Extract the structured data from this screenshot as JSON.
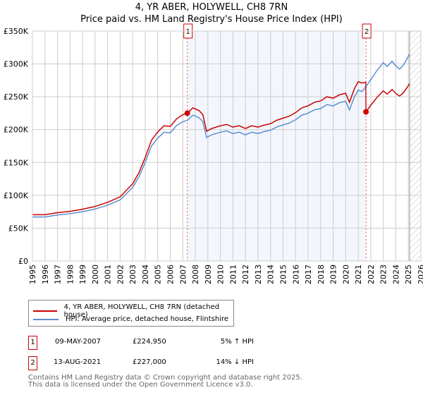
{
  "title_line1": "4, YR ABER, HOLYWELL, CH8 7RN",
  "title_line2": "Price paid vs. HM Land Registry's House Price Index (HPI)",
  "chart_data": {
    "type": "line",
    "title": "4, YR ABER, HOLYWELL, CH8 7RN — Price paid vs. HM Land Registry's House Price Index (HPI)",
    "xlim": [
      1995,
      2026
    ],
    "ylim": [
      0,
      350000
    ],
    "x_ticks": [
      "1995",
      "1996",
      "1997",
      "1998",
      "1999",
      "2000",
      "2001",
      "2002",
      "2003",
      "2004",
      "2005",
      "2006",
      "2007",
      "2008",
      "2009",
      "2010",
      "2011",
      "2012",
      "2013",
      "2014",
      "2015",
      "2016",
      "2017",
      "2018",
      "2019",
      "2020",
      "2021",
      "2022",
      "2023",
      "2024",
      "2025",
      "2026"
    ],
    "y_ticks": [
      {
        "v": 0,
        "label": "£0"
      },
      {
        "v": 50000,
        "label": "£50K"
      },
      {
        "v": 100000,
        "label": "£100K"
      },
      {
        "v": 150000,
        "label": "£150K"
      },
      {
        "v": 200000,
        "label": "£200K"
      },
      {
        "v": 250000,
        "label": "£250K"
      },
      {
        "v": 300000,
        "label": "£300K"
      },
      {
        "v": 350000,
        "label": "£350K"
      }
    ],
    "grid": true,
    "shaded_range": [
      2007.36,
      2021.62
    ],
    "forecast_hatch_from": 2025.1,
    "series": [
      {
        "name": "4, YR ABER, HOLYWELL, CH8 7RN (detached house)",
        "color": "#cc0000",
        "x": [
          1995,
          1996,
          1997,
          1998,
          1999,
          2000,
          2001,
          2002,
          2003,
          2003.5,
          2004,
          2004.5,
          2005,
          2005.5,
          2006,
          2006.5,
          2007,
          2007.36,
          2007.8,
          2008.3,
          2008.6,
          2008.9,
          2009.3,
          2010,
          2010.5,
          2011,
          2011.5,
          2012,
          2012.5,
          2013,
          2013.5,
          2014,
          2014.5,
          2015,
          2015.5,
          2016,
          2016.5,
          2017,
          2017.5,
          2018,
          2018.5,
          2019,
          2019.5,
          2020,
          2020.3,
          2020.7,
          2021,
          2021.3,
          2021.6,
          2021.62,
          2022,
          2022.5,
          2023,
          2023.3,
          2023.7,
          2024,
          2024.3,
          2024.6,
          2024.9,
          2025.1
        ],
        "y": [
          70400,
          70400,
          73500,
          75600,
          78800,
          83000,
          89300,
          97700,
          117600,
          134400,
          157500,
          183800,
          196400,
          205800,
          204800,
          216300,
          222600,
          224950,
          233100,
          228900,
          222600,
          197400,
          201600,
          205800,
          207900,
          203700,
          205800,
          201600,
          205800,
          203700,
          206900,
          209000,
          214200,
          217400,
          220500,
          225800,
          233100,
          236300,
          241500,
          243600,
          249900,
          247800,
          253000,
          255200,
          241500,
          262500,
          273000,
          270900,
          272000,
          227000,
          237000,
          249000,
          259000,
          254000,
          261000,
          255000,
          251000,
          256000,
          264000,
          270000
        ]
      },
      {
        "name": "HPI: Average price, detached house, Flintshire",
        "color": "#5b8fd0",
        "x": [
          1995,
          1996,
          1997,
          1998,
          1999,
          2000,
          2001,
          2002,
          2003,
          2003.5,
          2004,
          2004.5,
          2005,
          2005.5,
          2006,
          2006.5,
          2007,
          2007.36,
          2007.8,
          2008.3,
          2008.6,
          2008.9,
          2009.3,
          2010,
          2010.5,
          2011,
          2011.5,
          2012,
          2012.5,
          2013,
          2013.5,
          2014,
          2014.5,
          2015,
          2015.5,
          2016,
          2016.5,
          2017,
          2017.5,
          2018,
          2018.5,
          2019,
          2019.5,
          2020,
          2020.3,
          2020.7,
          2021,
          2021.3,
          2021.6,
          2022,
          2022.5,
          2023,
          2023.3,
          2023.7,
          2024,
          2024.3,
          2024.6,
          2024.9,
          2025.1
        ],
        "y": [
          67000,
          67000,
          70000,
          72000,
          75000,
          79000,
          85000,
          93000,
          112000,
          128000,
          150000,
          175000,
          187000,
          196000,
          195000,
          206000,
          212000,
          214000,
          222000,
          218000,
          212000,
          188000,
          192000,
          196000,
          198000,
          194000,
          196000,
          192000,
          196000,
          194000,
          197000,
          199000,
          204000,
          207000,
          210000,
          215000,
          222000,
          225000,
          230000,
          232000,
          238000,
          236000,
          241000,
          243000,
          230000,
          250000,
          260000,
          258000,
          265000,
          276000,
          290000,
          302000,
          296000,
          304000,
          297000,
          292000,
          298000,
          308000,
          315000
        ]
      }
    ],
    "annotations": [
      {
        "label": "1",
        "x": 2007.36,
        "y": 224950
      },
      {
        "label": "2",
        "x": 2021.62,
        "y": 227000
      }
    ]
  },
  "legend": [
    {
      "label": "4, YR ABER, HOLYWELL, CH8 7RN (detached house)",
      "color": "#cc0000"
    },
    {
      "label": "HPI: Average price, detached house, Flintshire",
      "color": "#5b8fd0"
    }
  ],
  "transactions": [
    {
      "num": "1",
      "date": "09-MAY-2007",
      "price": "£224,950",
      "hpi": "5% ↑ HPI"
    },
    {
      "num": "2",
      "date": "13-AUG-2021",
      "price": "£227,000",
      "hpi": "14% ↓ HPI"
    }
  ],
  "footer_line1": "Contains HM Land Registry data © Crown copyright and database right 2025.",
  "footer_line2": "This data is licensed under the Open Government Licence v3.0."
}
